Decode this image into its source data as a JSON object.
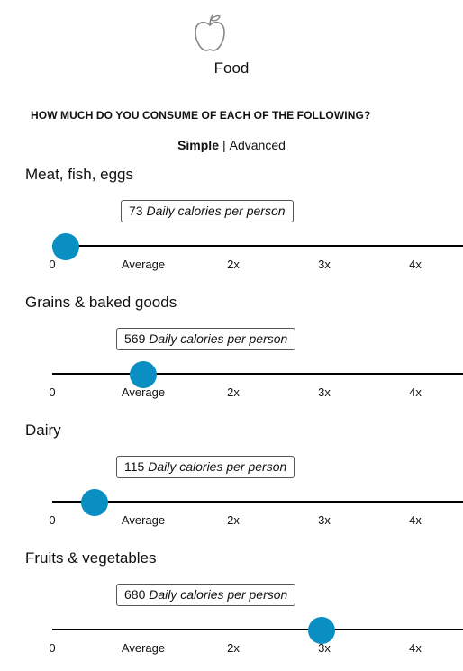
{
  "header": {
    "icon": "apple-icon",
    "title": "Food",
    "question": "HOW MUCH DO YOU CONSUME OF EACH OF THE FOLLOWING?",
    "modes": {
      "simple": "Simple",
      "separator": "|",
      "advanced": "Advanced",
      "active": "simple"
    }
  },
  "colors": {
    "accent": "#0a8fc2"
  },
  "scale_ticks": [
    "0",
    "Average",
    "2x",
    "3x",
    "4x"
  ],
  "unit_label": "Daily calories per person",
  "categories": [
    {
      "name": "Meat, fish, eggs",
      "value": "73",
      "level_multiple_of_average": 0.15
    },
    {
      "name": "Grains & baked goods",
      "value": "569",
      "level_multiple_of_average": 1.0
    },
    {
      "name": "Dairy",
      "value": "115",
      "level_multiple_of_average": 0.47
    },
    {
      "name": "Fruits & vegetables",
      "value": "680",
      "level_multiple_of_average": 2.96
    }
  ]
}
